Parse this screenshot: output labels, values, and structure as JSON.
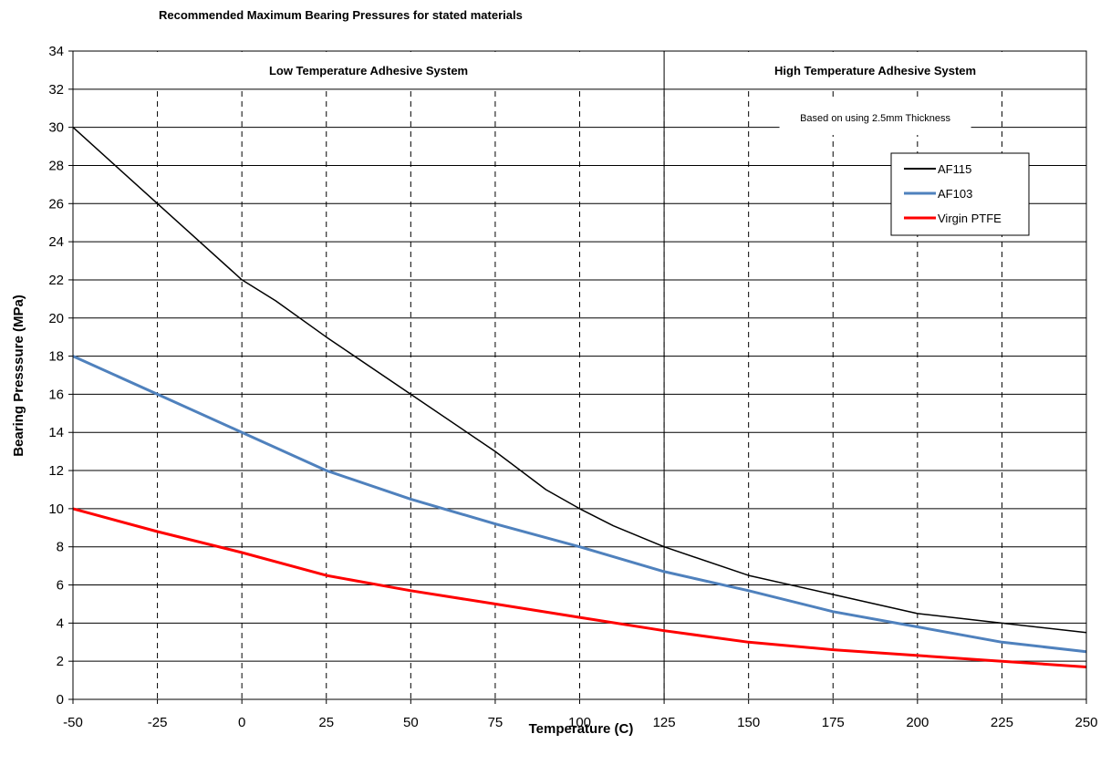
{
  "chart_data": {
    "type": "line",
    "title": "Recommended Maximum Bearing Pressures for stated materials",
    "xlabel": "Temperature (C)",
    "ylabel": "Bearing Presssure (MPa)",
    "xlim": [
      -50,
      250
    ],
    "ylim": [
      0,
      34
    ],
    "xticks": [
      -50,
      -25,
      0,
      25,
      50,
      75,
      100,
      125,
      150,
      175,
      200,
      225,
      250
    ],
    "yticks": [
      0,
      2,
      4,
      6,
      8,
      10,
      12,
      14,
      16,
      18,
      20,
      22,
      24,
      26,
      28,
      30,
      32,
      34
    ],
    "grid": true,
    "legend_position": "top-right",
    "region_divider_x": 125,
    "regions": [
      {
        "label": "Low Temperature Adhesive System",
        "x_range": [
          -50,
          125
        ]
      },
      {
        "label": "High Temperature Adhesive System",
        "x_range": [
          125,
          250
        ]
      }
    ],
    "annotation": "Based on using 2.5mm Thickness",
    "series": [
      {
        "name": "AF115",
        "color": "#000000",
        "x": [
          -50,
          -25,
          0,
          10,
          25,
          50,
          75,
          90,
          100,
          110,
          125,
          150,
          175,
          200,
          225,
          250
        ],
        "y": [
          30,
          26,
          22,
          20.9,
          19,
          16,
          13,
          11,
          10,
          9.1,
          8,
          6.5,
          5.5,
          4.5,
          4.0,
          3.5
        ]
      },
      {
        "name": "AF103",
        "color": "#4f81bd",
        "x": [
          -50,
          -25,
          0,
          25,
          50,
          75,
          100,
          125,
          150,
          175,
          200,
          225,
          250
        ],
        "y": [
          18,
          16,
          14,
          12,
          10.5,
          9.2,
          8,
          6.7,
          5.7,
          4.6,
          3.8,
          3.0,
          2.5
        ]
      },
      {
        "name": "Virgin PTFE",
        "color": "#ff0000",
        "x": [
          -50,
          -25,
          0,
          25,
          50,
          75,
          100,
          125,
          150,
          175,
          200,
          225,
          250
        ],
        "y": [
          10,
          8.8,
          7.7,
          6.5,
          5.7,
          5.0,
          4.3,
          3.6,
          3.0,
          2.6,
          2.3,
          2.0,
          1.7
        ]
      }
    ]
  }
}
